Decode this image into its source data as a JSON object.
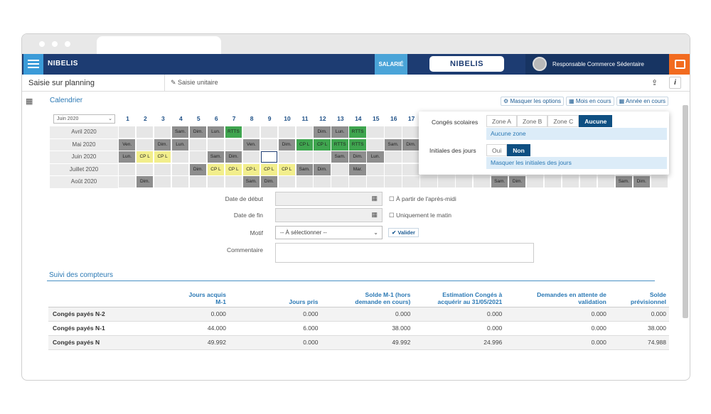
{
  "header": {
    "logo": "NIBELIS",
    "role": "SALARIÉ",
    "center_logo": "NIBELIS",
    "user": "Responsable Commerce Sédentaire"
  },
  "toolbar": {
    "title": "Saisie sur planning",
    "tab": "Saisie unitaire",
    "info": "i"
  },
  "calendar": {
    "title": "Calendrier",
    "buttons": [
      "Masquer les options",
      "Mois en cours",
      "Année en cours"
    ],
    "month_select": "Juin 2020",
    "days": [
      1,
      2,
      3,
      4,
      5,
      6,
      7,
      8,
      9,
      10,
      11,
      12,
      13,
      14,
      15,
      16,
      17
    ],
    "selected": {
      "row": 2,
      "day": 9
    },
    "rows": [
      {
        "label": "Avril 2020",
        "cells": [
          {
            "day": 4,
            "label": "Sam.",
            "color": "#8e8e8e"
          },
          {
            "day": 5,
            "label": "Dim.",
            "color": "#8e8e8e"
          },
          {
            "day": 6,
            "label": "Lun.",
            "color": "#8e8e8e"
          },
          {
            "day": 7,
            "label": "RTTS",
            "color": "#3fa54f"
          },
          {
            "day": 12,
            "label": "Dim.",
            "color": "#8e8e8e"
          },
          {
            "day": 13,
            "label": "Lun.",
            "color": "#8e8e8e"
          },
          {
            "day": 14,
            "label": "RTTS",
            "color": "#3fa54f"
          }
        ]
      },
      {
        "label": "Mai 2020",
        "cells": [
          {
            "day": 1,
            "label": "Ven.",
            "color": "#8e8e8e"
          },
          {
            "day": 3,
            "label": "Dim.",
            "color": "#8e8e8e"
          },
          {
            "day": 4,
            "label": "Lun.",
            "color": "#8e8e8e"
          },
          {
            "day": 8,
            "label": "Ven.",
            "color": "#8e8e8e"
          },
          {
            "day": 10,
            "label": "Dim.",
            "color": "#8e8e8e"
          },
          {
            "day": 11,
            "label": "CP L",
            "color": "#3fa54f"
          },
          {
            "day": 12,
            "label": "CP L",
            "color": "#3fa54f"
          },
          {
            "day": 13,
            "label": "RTTS",
            "color": "#3fa54f"
          },
          {
            "day": 14,
            "label": "RTTS",
            "color": "#3fa54f"
          },
          {
            "day": 16,
            "label": "Sam.",
            "color": "#8e8e8e"
          },
          {
            "day": 17,
            "label": "Dim.",
            "color": "#8e8e8e"
          }
        ]
      },
      {
        "label": "Juin 2020",
        "cells": [
          {
            "day": 1,
            "label": "Lun.",
            "color": "#8e8e8e"
          },
          {
            "day": 2,
            "label": "CP L",
            "color": "#f2ee8c"
          },
          {
            "day": 3,
            "label": "CP L",
            "color": "#f2ee8c"
          },
          {
            "day": 6,
            "label": "Sam.",
            "color": "#8e8e8e"
          },
          {
            "day": 7,
            "label": "Dim.",
            "color": "#8e8e8e"
          },
          {
            "day": 13,
            "label": "Sam.",
            "color": "#8e8e8e"
          },
          {
            "day": 14,
            "label": "Dim.",
            "color": "#8e8e8e"
          },
          {
            "day": 15,
            "label": "Lun.",
            "color": "#8e8e8e"
          }
        ]
      },
      {
        "label": "Juillet 2020",
        "cells": [
          {
            "day": 5,
            "label": "Dim.",
            "color": "#8e8e8e"
          },
          {
            "day": 6,
            "label": "CP L",
            "color": "#f2ee8c"
          },
          {
            "day": 7,
            "label": "CP L",
            "color": "#f2ee8c"
          },
          {
            "day": 8,
            "label": "CP L",
            "color": "#f2ee8c"
          },
          {
            "day": 9,
            "label": "CP L",
            "color": "#f2ee8c"
          },
          {
            "day": 10,
            "label": "CP L",
            "color": "#f2ee8c"
          },
          {
            "day": 11,
            "label": "Sam.",
            "color": "#8e8e8e"
          },
          {
            "day": 12,
            "label": "Dim.",
            "color": "#8e8e8e"
          },
          {
            "day": 14,
            "label": "Mar.",
            "color": "#8e8e8e"
          }
        ]
      },
      {
        "label": "Août 2020",
        "cells": [
          {
            "day": 2,
            "label": "Dim.",
            "color": "#8e8e8e"
          },
          {
            "day": 8,
            "label": "Sam.",
            "color": "#8e8e8e"
          },
          {
            "day": 9,
            "label": "Dim.",
            "color": "#8e8e8e"
          },
          {
            "day": 22,
            "label": "Sam.",
            "color": "#8e8e8e"
          },
          {
            "day": 23,
            "label": "Dim.",
            "color": "#8e8e8e"
          },
          {
            "day": 29,
            "label": "Sam.",
            "color": "#8e8e8e"
          },
          {
            "day": 30,
            "label": "Dim.",
            "color": "#8e8e8e"
          }
        ]
      }
    ]
  },
  "options": {
    "school_label": "Congés scolaires",
    "zones": [
      "Zone A",
      "Zone B",
      "Zone C",
      "Aucune"
    ],
    "active_zone": 3,
    "zone_note": "Aucune zone",
    "initials_label": "Initiales des jours",
    "initials": [
      "Oui",
      "Non"
    ],
    "active_initials": 1,
    "initials_note": "Masquer les initiales des jours"
  },
  "form": {
    "start_label": "Date de début",
    "start_option": "À partir de l'après-midi",
    "end_label": "Date de fin",
    "end_option": "Uniquement le matin",
    "reason_label": "Motif",
    "reason_placeholder": "-- À sélectionner --",
    "submit": "Valider",
    "comment_label": "Commentaire"
  },
  "counters": {
    "title": "Suivi des compteurs",
    "columns": [
      "Jours acquis M-1",
      "Jours pris",
      "Solde M-1 (hors demande en cours)",
      "Estimation Congés à acquérir au 31/05/2021",
      "Demandes en attente de validation",
      "Solde prévisionnel"
    ],
    "rows": [
      {
        "label": "Congés payés N-2",
        "values": [
          "0.000",
          "0.000",
          "0.000",
          "0.000",
          "0.000",
          "0.000"
        ]
      },
      {
        "label": "Congés payés N-1",
        "values": [
          "44.000",
          "6.000",
          "38.000",
          "0.000",
          "0.000",
          "38.000"
        ]
      },
      {
        "label": "Congés payés N",
        "values": [
          "49.992",
          "0.000",
          "49.992",
          "24.996",
          "0.000",
          "74.988"
        ]
      }
    ]
  }
}
